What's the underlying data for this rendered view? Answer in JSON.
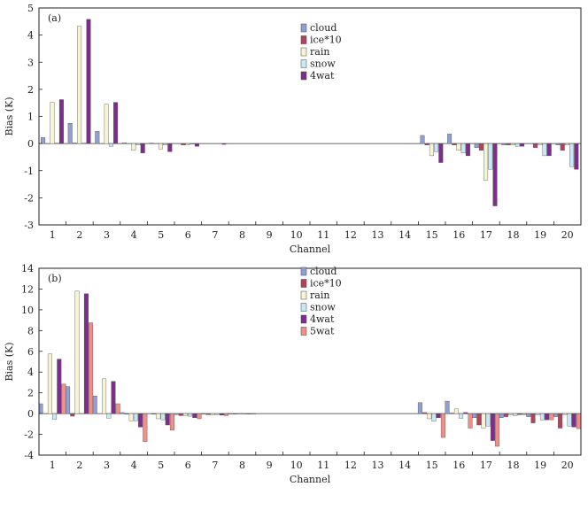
{
  "chart_data": [
    {
      "type": "bar",
      "panel_label": "(a)",
      "xlabel": "Channel",
      "ylabel": "Bias (K)",
      "ylim": [
        -3,
        5
      ],
      "yticks": [
        -3,
        -2,
        -1,
        0,
        1,
        2,
        3,
        4,
        5
      ],
      "categories": [
        "1",
        "2",
        "3",
        "4",
        "5",
        "6",
        "7",
        "8",
        "9",
        "10",
        "11",
        "12",
        "13",
        "14",
        "15",
        "16",
        "17",
        "18",
        "19",
        "20"
      ],
      "series": [
        {
          "name": "cloud",
          "color": "#8f9fd2",
          "values": [
            0.22,
            0.75,
            0.45,
            0.03,
            0.02,
            0.0,
            0.0,
            0,
            0,
            0,
            0,
            0,
            0,
            0,
            0.3,
            0.35,
            -0.15,
            -0.05,
            0.0,
            -0.05
          ]
        },
        {
          "name": "ice*10",
          "color": "#b0445f",
          "values": [
            0.0,
            0.02,
            0.0,
            0.0,
            0.0,
            -0.05,
            0.0,
            0,
            0,
            0,
            0,
            0,
            0,
            0,
            -0.05,
            -0.05,
            -0.25,
            -0.05,
            -0.15,
            -0.25
          ]
        },
        {
          "name": "rain",
          "color": "#f7f4d6",
          "values": [
            1.52,
            4.32,
            1.45,
            -0.25,
            -0.2,
            -0.05,
            0.0,
            0,
            0,
            0,
            0,
            0,
            0,
            0,
            -0.45,
            -0.25,
            -1.35,
            -0.05,
            -0.05,
            -0.05
          ]
        },
        {
          "name": "snow",
          "color": "#c8e8f4",
          "values": [
            0.02,
            0.02,
            -0.1,
            -0.05,
            -0.05,
            -0.02,
            0.0,
            0,
            0,
            0,
            0,
            0,
            0,
            0,
            -0.3,
            -0.35,
            -0.95,
            -0.1,
            -0.45,
            -0.85
          ]
        },
        {
          "name": "4wat",
          "color": "#7b2f8a",
          "values": [
            1.62,
            4.58,
            1.52,
            -0.35,
            -0.3,
            -0.1,
            -0.03,
            0,
            0,
            0,
            0,
            0,
            0,
            0,
            -0.7,
            -0.45,
            -2.3,
            -0.1,
            -0.45,
            -0.95
          ]
        }
      ]
    },
    {
      "type": "bar",
      "panel_label": "(b)",
      "xlabel": "Channel",
      "ylabel": "Bias (K)",
      "ylim": [
        -4,
        14
      ],
      "yticks": [
        -4,
        -2,
        0,
        2,
        4,
        6,
        8,
        10,
        12,
        14
      ],
      "categories": [
        "1",
        "2",
        "3",
        "4",
        "5",
        "6",
        "7",
        "8",
        "9",
        "10",
        "11",
        "12",
        "13",
        "14",
        "15",
        "16",
        "17",
        "18",
        "19",
        "20"
      ],
      "series": [
        {
          "name": "cloud",
          "color": "#8f9fd2",
          "values": [
            0.95,
            2.6,
            1.7,
            0.1,
            0.0,
            -0.1,
            -0.05,
            -0.05,
            0,
            0,
            0,
            0,
            0,
            0,
            1.05,
            1.2,
            -0.4,
            -0.4,
            -0.3,
            -0.3
          ]
        },
        {
          "name": "ice*10",
          "color": "#b0445f",
          "values": [
            0.0,
            -0.25,
            0.0,
            -0.05,
            -0.05,
            -0.2,
            -0.1,
            -0.05,
            0,
            0,
            0,
            0,
            0,
            0,
            0.1,
            0.05,
            -1.1,
            -0.3,
            -0.9,
            -1.4
          ]
        },
        {
          "name": "rain",
          "color": "#f7f4d6",
          "values": [
            5.75,
            11.8,
            3.35,
            -0.7,
            -0.5,
            -0.2,
            -0.15,
            -0.05,
            0,
            0,
            0,
            0,
            0,
            0,
            -0.5,
            0.45,
            -1.4,
            -0.1,
            -0.1,
            -0.1
          ]
        },
        {
          "name": "snow",
          "color": "#c8e8f4",
          "values": [
            -0.55,
            0.0,
            -0.45,
            -0.7,
            -0.6,
            -0.25,
            -0.1,
            -0.05,
            0,
            0,
            0,
            0,
            0,
            0,
            -0.75,
            -0.45,
            -1.2,
            -0.2,
            -0.6,
            -1.2
          ]
        },
        {
          "name": "4wat",
          "color": "#7b2f8a",
          "values": [
            5.25,
            11.55,
            3.1,
            -1.3,
            -1.1,
            -0.4,
            -0.15,
            -0.05,
            0,
            0,
            0,
            0,
            0,
            0,
            -0.4,
            0.1,
            -2.6,
            -0.1,
            -0.6,
            -1.3
          ]
        },
        {
          "name": "5wat",
          "color": "#f08e88",
          "values": [
            2.85,
            8.75,
            0.95,
            -2.7,
            -1.6,
            -0.5,
            -0.2,
            -0.05,
            0,
            0,
            0,
            0,
            0,
            0,
            -2.3,
            -1.4,
            -3.15,
            -0.1,
            -0.6,
            -1.45
          ]
        }
      ]
    }
  ]
}
